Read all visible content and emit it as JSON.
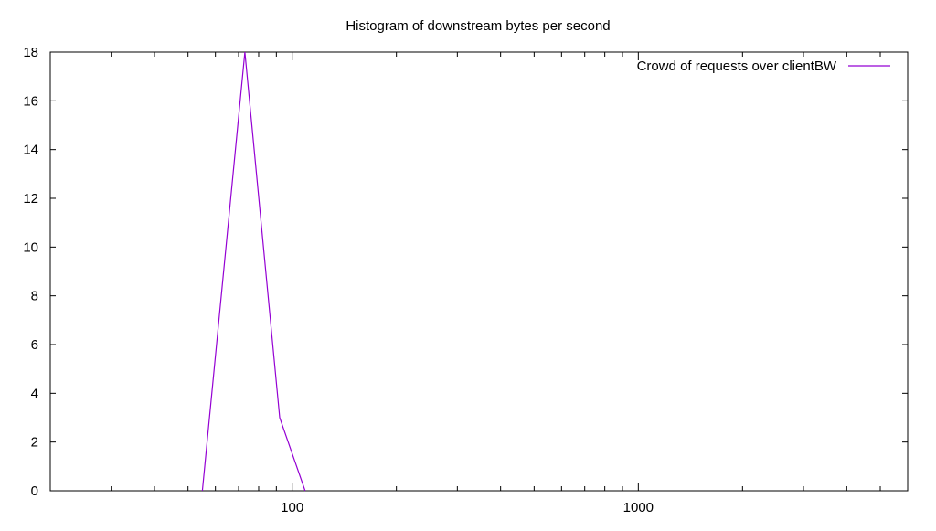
{
  "chart_data": {
    "type": "line",
    "title": "Histogram of downstream bytes per second",
    "xlabel": "",
    "ylabel": "",
    "xscale": "log",
    "xlim": [
      20,
      6000
    ],
    "ylim": [
      0,
      18
    ],
    "x_ticks": [
      100,
      1000
    ],
    "y_ticks": [
      0,
      2,
      4,
      6,
      8,
      10,
      12,
      14,
      16,
      18
    ],
    "grid": false,
    "legend_position": "top-right",
    "series": [
      {
        "name": "Crowd of requests over clientBW",
        "color": "#9400d3",
        "x": [
          55,
          73,
          92,
          109
        ],
        "y": [
          0,
          18,
          3,
          0
        ]
      }
    ]
  }
}
